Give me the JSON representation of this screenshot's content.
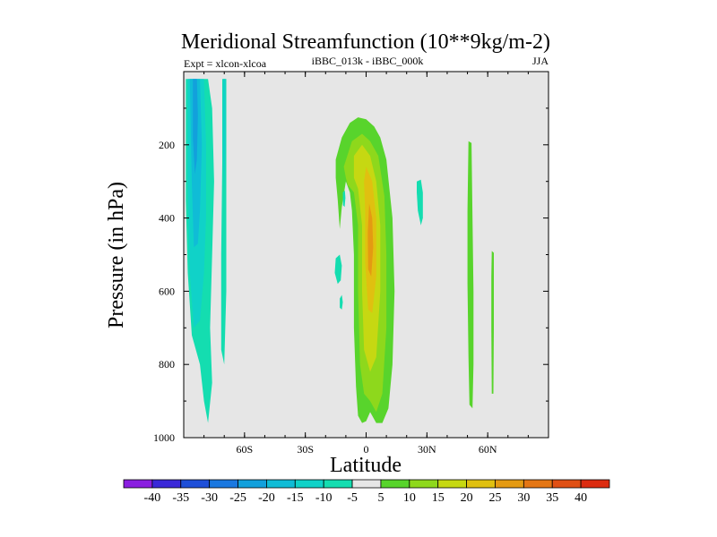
{
  "chart_data": {
    "type": "contour",
    "title": "Meridional Streamfunction (10**9kg/m-2)",
    "subtitle_left": "Expt = xlcon-xlcoa",
    "subtitle_center": "iBBC_013k - iBBC_000k",
    "subtitle_right": "JJA",
    "xlabel": "Latitude",
    "ylabel": "Pressure (in hPa)",
    "xlim": [
      -90,
      90
    ],
    "ylim": [
      1000,
      0
    ],
    "x_ticks": [
      {
        "value": -60,
        "label": "60S"
      },
      {
        "value": -30,
        "label": "30S"
      },
      {
        "value": 0,
        "label": "0"
      },
      {
        "value": 30,
        "label": "30N"
      },
      {
        "value": 60,
        "label": "60N"
      }
    ],
    "y_ticks": [
      {
        "value": 200,
        "label": "200"
      },
      {
        "value": 400,
        "label": "400"
      },
      {
        "value": 600,
        "label": "600"
      },
      {
        "value": 800,
        "label": "800"
      },
      {
        "value": 1000,
        "label": "1000"
      }
    ],
    "colorbar": {
      "labels": [
        "-40",
        "-35",
        "-30",
        "-25",
        "-20",
        "-15",
        "-10",
        "-5",
        "5",
        "10",
        "15",
        "20",
        "25",
        "30",
        "35",
        "40"
      ],
      "colors": [
        "#8a1ee0",
        "#3a28d8",
        "#1e4fd8",
        "#1a78e0",
        "#12a0dc",
        "#10bcd6",
        "#10d2c8",
        "#14ddb0",
        "#e6e6e6",
        "#58d42c",
        "#8ed81c",
        "#c6d812",
        "#e0c010",
        "#e49a12",
        "#e47614",
        "#e05014",
        "#dc2c10"
      ]
    },
    "regions": [
      {
        "name": "antarctic-negative-cell",
        "color": "#14ddb0",
        "points": [
          [
            -89,
            20
          ],
          [
            -78,
            20
          ],
          [
            -76,
            100
          ],
          [
            -75,
            300
          ],
          [
            -76,
            500
          ],
          [
            -77,
            700
          ],
          [
            -76,
            850
          ],
          [
            -78,
            960
          ],
          [
            -80,
            900
          ],
          [
            -82,
            800
          ],
          [
            -86,
            720
          ],
          [
            -88,
            550
          ],
          [
            -89,
            350
          ]
        ]
      },
      {
        "name": "antarctic-negative-core-outer",
        "color": "#10d2c8",
        "points": [
          [
            -88,
            20
          ],
          [
            -80,
            20
          ],
          [
            -79,
            200
          ],
          [
            -79,
            400
          ],
          [
            -80,
            550
          ],
          [
            -82,
            680
          ],
          [
            -85,
            700
          ],
          [
            -87,
            550
          ],
          [
            -88,
            300
          ]
        ]
      },
      {
        "name": "antarctic-negative-core-mid",
        "color": "#10bcd6",
        "points": [
          [
            -87,
            20
          ],
          [
            -82,
            20
          ],
          [
            -81,
            200
          ],
          [
            -82,
            380
          ],
          [
            -83,
            470
          ],
          [
            -85,
            480
          ],
          [
            -86,
            300
          ]
        ]
      },
      {
        "name": "antarctic-negative-core-inner",
        "color": "#12a0dc",
        "points": [
          [
            -85.5,
            20
          ],
          [
            -83.5,
            20
          ],
          [
            -83,
            120
          ],
          [
            -83.5,
            240
          ],
          [
            -84.5,
            280
          ],
          [
            -85.5,
            180
          ]
        ]
      },
      {
        "name": "southern-negative-strip",
        "color": "#14ddb0",
        "points": [
          [
            -71,
            20
          ],
          [
            -69,
            20
          ],
          [
            -69,
            200
          ],
          [
            -69,
            600
          ],
          [
            -70,
            800
          ],
          [
            -71.5,
            760
          ],
          [
            -71.5,
            500
          ],
          [
            -71,
            250
          ]
        ]
      },
      {
        "name": "southern-negative-strip-core",
        "color": "#10d2c8",
        "points": [
          [
            -70.6,
            20
          ],
          [
            -69.4,
            20
          ],
          [
            -69.4,
            200
          ],
          [
            -70,
            320
          ],
          [
            -70.6,
            220
          ]
        ]
      },
      {
        "name": "hadley-positive-cell",
        "color": "#58d42c",
        "points": [
          [
            -15,
            240
          ],
          [
            -12,
            180
          ],
          [
            -8,
            140
          ],
          [
            -4,
            125
          ],
          [
            0,
            130
          ],
          [
            4,
            150
          ],
          [
            7,
            180
          ],
          [
            10,
            240
          ],
          [
            13,
            400
          ],
          [
            14,
            600
          ],
          [
            13,
            800
          ],
          [
            11,
            920
          ],
          [
            8,
            960
          ],
          [
            5,
            960
          ],
          [
            2,
            930
          ],
          [
            0,
            955
          ],
          [
            -2,
            960
          ],
          [
            -4,
            940
          ],
          [
            -5,
            860
          ],
          [
            -6,
            700
          ],
          [
            -6,
            500
          ],
          [
            -7,
            380
          ],
          [
            -8,
            330
          ],
          [
            -10,
            300
          ],
          [
            -12,
            370
          ],
          [
            -13,
            430
          ],
          [
            -14,
            350
          ],
          [
            -15,
            290
          ]
        ]
      },
      {
        "name": "hadley-positive-outer",
        "color": "#8ed81c",
        "points": [
          [
            -11,
            260
          ],
          [
            -7,
            190
          ],
          [
            -2,
            170
          ],
          [
            2,
            190
          ],
          [
            6,
            230
          ],
          [
            9,
            340
          ],
          [
            10,
            500
          ],
          [
            10,
            700
          ],
          [
            8,
            880
          ],
          [
            5,
            930
          ],
          [
            2,
            900
          ],
          [
            -1,
            880
          ],
          [
            -3,
            800
          ],
          [
            -4,
            600
          ],
          [
            -4,
            420
          ],
          [
            -6,
            330
          ],
          [
            -9,
            310
          ],
          [
            -10,
            290
          ]
        ]
      },
      {
        "name": "hadley-positive-mid",
        "color": "#c6d812",
        "points": [
          [
            -6,
            230
          ],
          [
            -2,
            200
          ],
          [
            2,
            230
          ],
          [
            5,
            300
          ],
          [
            7,
            420
          ],
          [
            7,
            600
          ],
          [
            5,
            780
          ],
          [
            2,
            820
          ],
          [
            -1,
            760
          ],
          [
            -2,
            600
          ],
          [
            -2,
            420
          ],
          [
            -4,
            320
          ],
          [
            -6,
            290
          ]
        ]
      },
      {
        "name": "hadley-positive-core",
        "color": "#e0c010",
        "points": [
          [
            0,
            260
          ],
          [
            3,
            300
          ],
          [
            5,
            400
          ],
          [
            5,
            560
          ],
          [
            3,
            660
          ],
          [
            1,
            650
          ],
          [
            -0.5,
            520
          ],
          [
            -0.5,
            380
          ],
          [
            -1,
            300
          ]
        ]
      },
      {
        "name": "hadley-positive-max",
        "color": "#e49a12",
        "points": [
          [
            1.5,
            360
          ],
          [
            3,
            400
          ],
          [
            3.5,
            480
          ],
          [
            2.5,
            560
          ],
          [
            1,
            540
          ],
          [
            0.8,
            440
          ]
        ]
      },
      {
        "name": "negative-blob-a",
        "color": "#14ddb0",
        "points": [
          [
            -11.5,
            330
          ],
          [
            -10.5,
            325
          ],
          [
            -10.2,
            345
          ],
          [
            -10.6,
            370
          ],
          [
            -11.4,
            365
          ]
        ]
      },
      {
        "name": "negative-blob-b",
        "color": "#14ddb0",
        "points": [
          [
            -15,
            510
          ],
          [
            -13,
            500
          ],
          [
            -12,
            530
          ],
          [
            -12.5,
            570
          ],
          [
            -14,
            580
          ],
          [
            -15.5,
            550
          ]
        ]
      },
      {
        "name": "negative-blob-c",
        "color": "#14ddb0",
        "points": [
          [
            -13,
            620
          ],
          [
            -12,
            610
          ],
          [
            -11.5,
            630
          ],
          [
            -12,
            650
          ],
          [
            -13,
            645
          ]
        ]
      },
      {
        "name": "negative-blob-d",
        "color": "#14ddb0",
        "points": [
          [
            25,
            300
          ],
          [
            27,
            295
          ],
          [
            28,
            330
          ],
          [
            28,
            400
          ],
          [
            27,
            420
          ],
          [
            25.5,
            380
          ],
          [
            25,
            330
          ]
        ]
      },
      {
        "name": "northern-positive-strip",
        "color": "#58d42c",
        "points": [
          [
            50.5,
            190
          ],
          [
            52,
            195
          ],
          [
            52.5,
            400
          ],
          [
            53,
            600
          ],
          [
            53,
            800
          ],
          [
            52.5,
            920
          ],
          [
            51,
            910
          ],
          [
            50.5,
            780
          ],
          [
            50,
            580
          ],
          [
            50,
            380
          ]
        ]
      },
      {
        "name": "northern-positive-strip-b",
        "color": "#58d42c",
        "points": [
          [
            62,
            490
          ],
          [
            63,
            495
          ],
          [
            63,
            700
          ],
          [
            62.8,
            880
          ],
          [
            62,
            880
          ],
          [
            61.8,
            700
          ],
          [
            61.8,
            560
          ]
        ]
      }
    ]
  }
}
